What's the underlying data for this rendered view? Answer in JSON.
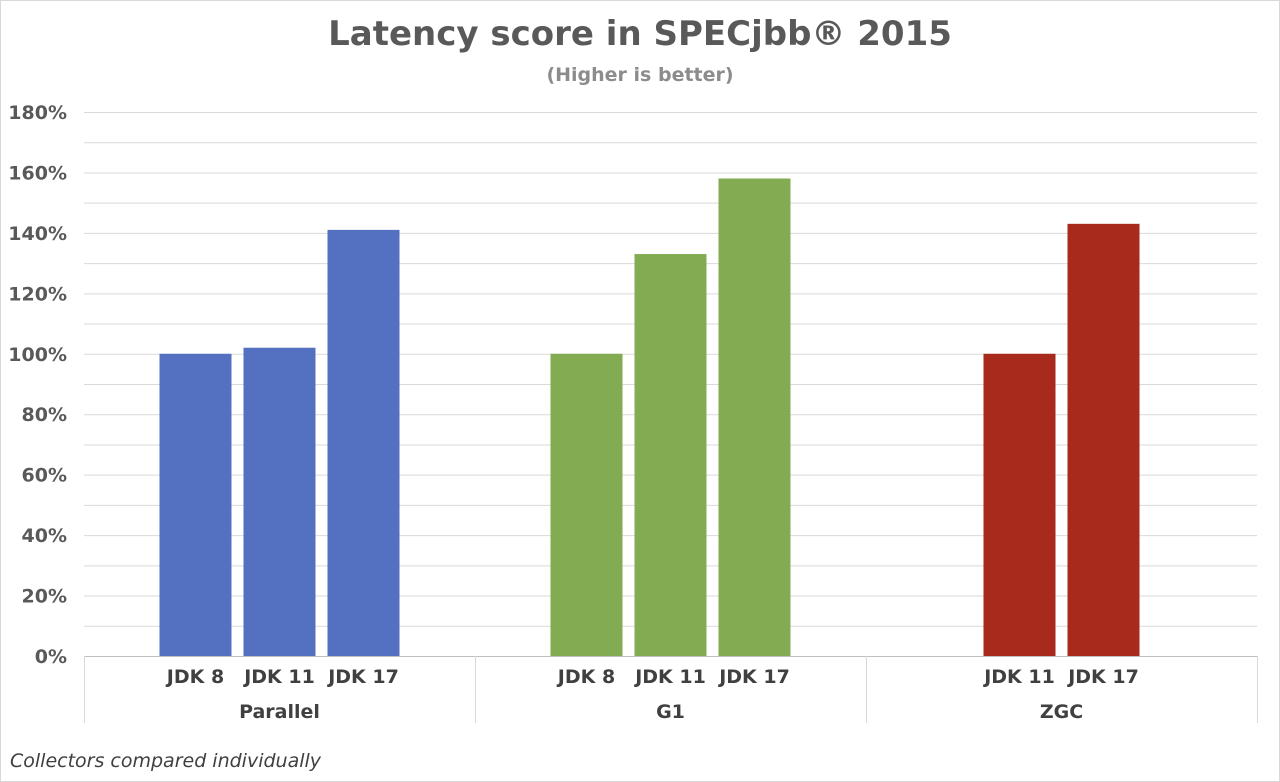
{
  "chart_data": {
    "type": "bar",
    "title": "Latency score in SPECjbb® 2015",
    "subtitle": "(Higher is better)",
    "ylim": [
      0,
      180
    ],
    "yticks": [
      0,
      20,
      40,
      60,
      80,
      100,
      120,
      140,
      160,
      180
    ],
    "ytick_labels": [
      "0%",
      "20%",
      "40%",
      "60%",
      "80%",
      "100%",
      "120%",
      "140%",
      "160%",
      "180%"
    ],
    "grid": true,
    "groups": [
      {
        "name": "Parallel",
        "color": "#5470c1",
        "categories": [
          "JDK 8",
          "JDK 11",
          "JDK 17"
        ],
        "values": [
          100,
          102,
          141
        ]
      },
      {
        "name": "G1",
        "color": "#83ab51",
        "categories": [
          "JDK 8",
          "JDK 11",
          "JDK 17"
        ],
        "values": [
          100,
          133,
          158
        ]
      },
      {
        "name": "ZGC",
        "color": "#a82a1d",
        "categories": [
          "JDK 11",
          "JDK 17"
        ],
        "values": [
          100,
          143
        ]
      }
    ],
    "footnote": "Collectors compared individually"
  }
}
